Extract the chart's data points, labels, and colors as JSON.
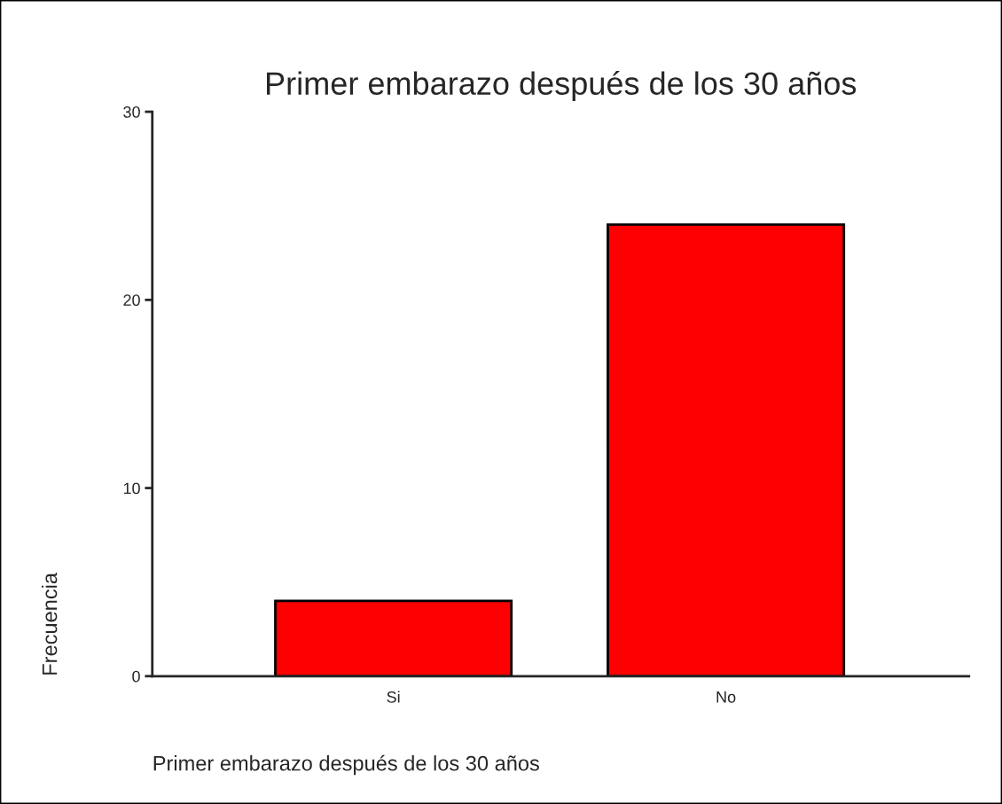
{
  "chart_data": {
    "type": "bar",
    "title": "Primer embarazo después de los 30 años",
    "xlabel": "Primer embarazo después de los 30 años",
    "ylabel": "Frecuencia",
    "categories": [
      "Si",
      "No"
    ],
    "values": [
      4,
      24
    ],
    "color": "#ff0000",
    "ylim": [
      0,
      30
    ],
    "yticks": [
      0,
      10,
      20,
      30
    ],
    "grid": false
  }
}
